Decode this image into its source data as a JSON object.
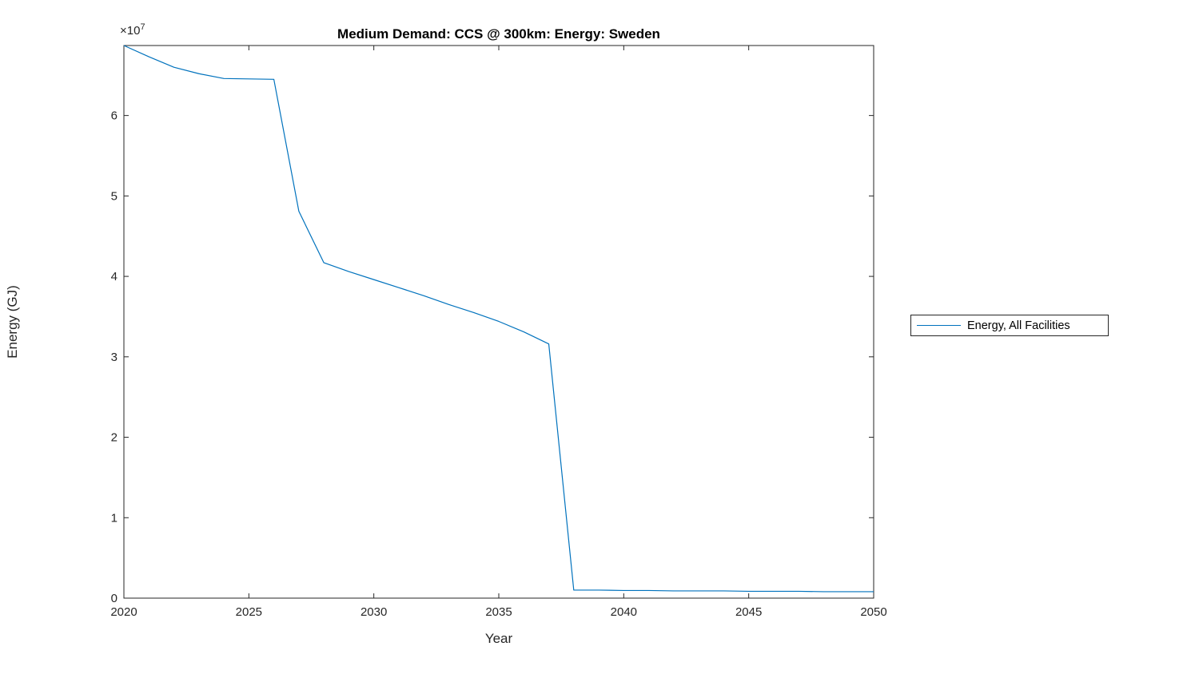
{
  "chart_data": {
    "type": "line",
    "title": "Medium Demand: CCS @ 300km: Energy: Sweden",
    "xlabel": "Year",
    "ylabel": "Energy (GJ)",
    "y_axis_multiplier_base": "×10",
    "y_axis_multiplier_exp": "7",
    "y_units_note": "values are in units of 1e7 GJ, per axis multiplier",
    "xlim": [
      2020,
      2050
    ],
    "ylim": [
      0,
      6.87
    ],
    "xticks": [
      2020,
      2025,
      2030,
      2035,
      2040,
      2045,
      2050
    ],
    "yticks": [
      0,
      1,
      2,
      3,
      4,
      5,
      6
    ],
    "grid": false,
    "legend": {
      "position": "outside-right",
      "entries": [
        "Energy, All Facilities"
      ]
    },
    "line_color": "#0072BD",
    "axis_color": "#262626",
    "series": [
      {
        "name": "Energy, All Facilities",
        "x": [
          2020,
          2021,
          2022,
          2023,
          2024,
          2025,
          2026,
          2027,
          2028,
          2029,
          2030,
          2031,
          2032,
          2033,
          2034,
          2035,
          2036,
          2037,
          2038,
          2039,
          2040,
          2041,
          2042,
          2043,
          2044,
          2045,
          2046,
          2047,
          2048,
          2049,
          2050
        ],
        "values": [
          6.87,
          6.73,
          6.6,
          6.52,
          6.46,
          6.455,
          6.45,
          4.81,
          4.17,
          4.06,
          3.96,
          3.86,
          3.76,
          3.65,
          3.55,
          3.44,
          3.31,
          3.16,
          0.1,
          0.1,
          0.095,
          0.095,
          0.09,
          0.09,
          0.09,
          0.085,
          0.085,
          0.085,
          0.08,
          0.08,
          0.08
        ]
      }
    ]
  }
}
